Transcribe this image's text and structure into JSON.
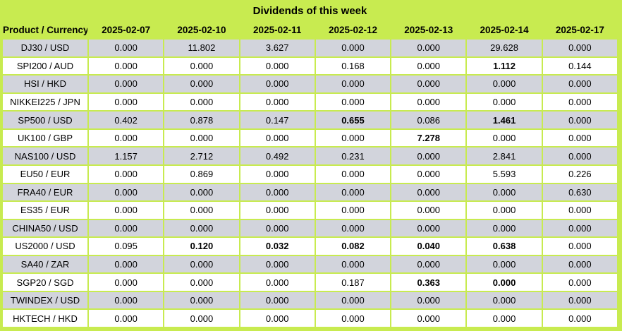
{
  "title": "Dividends of this week",
  "colors": {
    "accent_green": "#C8EB50",
    "row_gray": "#D2D4DC",
    "row_white": "#FFFFFF",
    "text": "#000000"
  },
  "table": {
    "product_header": "Product / Currency",
    "date_headers": [
      "2025-02-07",
      "2025-02-10",
      "2025-02-11",
      "2025-02-12",
      "2025-02-13",
      "2025-02-14",
      "2025-02-17"
    ],
    "rows": [
      {
        "product": "DJ30 / USD",
        "values": [
          "0.000",
          "11.802",
          "3.627",
          "0.000",
          "0.000",
          "29.628",
          "0.000"
        ],
        "bold": [
          false,
          false,
          false,
          false,
          false,
          false,
          false
        ]
      },
      {
        "product": "SPI200 / AUD",
        "values": [
          "0.000",
          "0.000",
          "0.000",
          "0.168",
          "0.000",
          "1.112",
          "0.144"
        ],
        "bold": [
          false,
          false,
          false,
          false,
          false,
          true,
          false
        ]
      },
      {
        "product": "HSI / HKD",
        "values": [
          "0.000",
          "0.000",
          "0.000",
          "0.000",
          "0.000",
          "0.000",
          "0.000"
        ],
        "bold": [
          false,
          false,
          false,
          false,
          false,
          false,
          false
        ]
      },
      {
        "product": "NIKKEI225 / JPN",
        "values": [
          "0.000",
          "0.000",
          "0.000",
          "0.000",
          "0.000",
          "0.000",
          "0.000"
        ],
        "bold": [
          false,
          false,
          false,
          false,
          false,
          false,
          false
        ]
      },
      {
        "product": "SP500 / USD",
        "values": [
          "0.402",
          "0.878",
          "0.147",
          "0.655",
          "0.086",
          "1.461",
          "0.000"
        ],
        "bold": [
          false,
          false,
          false,
          true,
          false,
          true,
          false
        ]
      },
      {
        "product": "UK100 / GBP",
        "values": [
          "0.000",
          "0.000",
          "0.000",
          "0.000",
          "7.278",
          "0.000",
          "0.000"
        ],
        "bold": [
          false,
          false,
          false,
          false,
          true,
          false,
          false
        ]
      },
      {
        "product": "NAS100 / USD",
        "values": [
          "1.157",
          "2.712",
          "0.492",
          "0.231",
          "0.000",
          "2.841",
          "0.000"
        ],
        "bold": [
          false,
          false,
          false,
          false,
          false,
          false,
          false
        ]
      },
      {
        "product": "EU50 / EUR",
        "values": [
          "0.000",
          "0.869",
          "0.000",
          "0.000",
          "0.000",
          "5.593",
          "0.226"
        ],
        "bold": [
          false,
          false,
          false,
          false,
          false,
          false,
          false
        ]
      },
      {
        "product": "FRA40 / EUR",
        "values": [
          "0.000",
          "0.000",
          "0.000",
          "0.000",
          "0.000",
          "0.000",
          "0.630"
        ],
        "bold": [
          false,
          false,
          false,
          false,
          false,
          false,
          false
        ]
      },
      {
        "product": "ES35 / EUR",
        "values": [
          "0.000",
          "0.000",
          "0.000",
          "0.000",
          "0.000",
          "0.000",
          "0.000"
        ],
        "bold": [
          false,
          false,
          false,
          false,
          false,
          false,
          false
        ]
      },
      {
        "product": "CHINA50 / USD",
        "values": [
          "0.000",
          "0.000",
          "0.000",
          "0.000",
          "0.000",
          "0.000",
          "0.000"
        ],
        "bold": [
          false,
          false,
          false,
          false,
          false,
          false,
          false
        ]
      },
      {
        "product": "US2000 / USD",
        "values": [
          "0.095",
          "0.120",
          "0.032",
          "0.082",
          "0.040",
          "0.638",
          "0.000"
        ],
        "bold": [
          false,
          true,
          true,
          true,
          true,
          true,
          false
        ]
      },
      {
        "product": "SA40 / ZAR",
        "values": [
          "0.000",
          "0.000",
          "0.000",
          "0.000",
          "0.000",
          "0.000",
          "0.000"
        ],
        "bold": [
          false,
          false,
          false,
          false,
          false,
          false,
          false
        ]
      },
      {
        "product": "SGP20 / SGD",
        "values": [
          "0.000",
          "0.000",
          "0.000",
          "0.187",
          "0.363",
          "0.000",
          "0.000"
        ],
        "bold": [
          false,
          false,
          false,
          false,
          true,
          true,
          false
        ]
      },
      {
        "product": "TWINDEX / USD",
        "values": [
          "0.000",
          "0.000",
          "0.000",
          "0.000",
          "0.000",
          "0.000",
          "0.000"
        ],
        "bold": [
          false,
          false,
          false,
          false,
          false,
          false,
          false
        ]
      },
      {
        "product": "HKTECH / HKD",
        "values": [
          "0.000",
          "0.000",
          "0.000",
          "0.000",
          "0.000",
          "0.000",
          "0.000"
        ],
        "bold": [
          false,
          false,
          false,
          false,
          false,
          false,
          false
        ]
      }
    ]
  }
}
